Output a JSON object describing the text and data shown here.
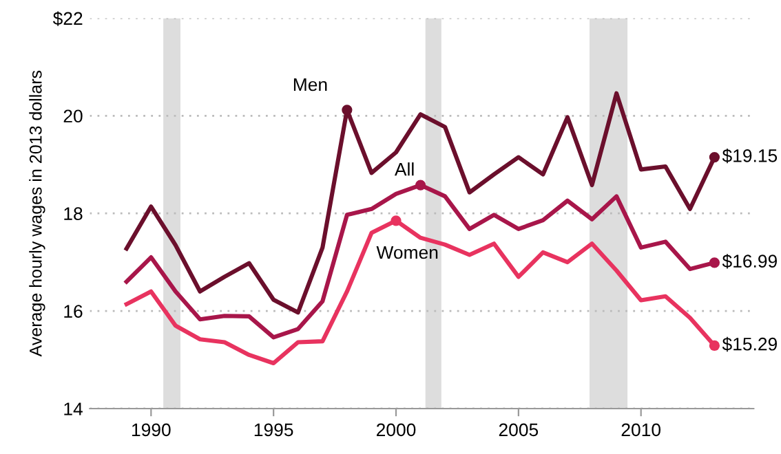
{
  "chart_data": {
    "type": "line",
    "ylabel": "Average hourly wages in 2013 dollars",
    "x": [
      1989,
      1990,
      1991,
      1992,
      1993,
      1994,
      1995,
      1996,
      1997,
      1998,
      1999,
      2000,
      2001,
      2002,
      2003,
      2004,
      2005,
      2006,
      2007,
      2008,
      2009,
      2010,
      2011,
      2012,
      2013
    ],
    "series": [
      {
        "name": "Men",
        "color": "#6b0f2c",
        "values": [
          17.28,
          18.14,
          17.35,
          16.4,
          16.7,
          16.98,
          16.23,
          15.97,
          17.3,
          20.12,
          18.83,
          19.25,
          20.03,
          19.77,
          18.43,
          18.8,
          19.15,
          18.8,
          19.97,
          18.58,
          20.46,
          18.9,
          18.96,
          18.09,
          19.15
        ],
        "value_labels": [
          null,
          null,
          null,
          null,
          null,
          null,
          null,
          null,
          null,
          null,
          null,
          null,
          null,
          null,
          null,
          null,
          null,
          null,
          null,
          null,
          null,
          null,
          null,
          null,
          "$19.15"
        ]
      },
      {
        "name": "All",
        "color": "#a8164a",
        "values": [
          16.6,
          17.1,
          16.4,
          15.83,
          15.9,
          15.89,
          15.46,
          15.63,
          16.2,
          17.97,
          18.09,
          18.4,
          18.58,
          18.35,
          17.68,
          17.97,
          17.68,
          17.86,
          18.26,
          17.88,
          18.35,
          17.3,
          17.42,
          16.86,
          16.99
        ],
        "value_labels": [
          null,
          null,
          null,
          null,
          null,
          null,
          null,
          null,
          null,
          null,
          null,
          null,
          null,
          null,
          null,
          null,
          null,
          null,
          null,
          null,
          null,
          null,
          null,
          null,
          "$16.99"
        ]
      },
      {
        "name": "Women",
        "color": "#e8335f",
        "values": [
          16.14,
          16.4,
          15.7,
          15.42,
          15.36,
          15.1,
          14.93,
          15.36,
          15.38,
          16.4,
          17.6,
          17.85,
          17.5,
          17.36,
          17.15,
          17.38,
          16.7,
          17.2,
          17.0,
          17.38,
          16.83,
          16.22,
          16.3,
          15.86,
          15.29
        ],
        "value_labels": [
          null,
          null,
          null,
          null,
          null,
          null,
          null,
          null,
          null,
          null,
          null,
          null,
          null,
          null,
          null,
          null,
          null,
          null,
          null,
          null,
          null,
          null,
          null,
          null,
          "$15.29"
        ]
      }
    ],
    "bands": [
      {
        "axis": "x",
        "from": 1990.5,
        "to": 1991.2,
        "color": "#dddddd"
      },
      {
        "axis": "x",
        "from": 2001.2,
        "to": 2001.85,
        "color": "#dddddd"
      },
      {
        "axis": "x",
        "from": 2007.9,
        "to": 2009.45,
        "color": "#dddddd"
      }
    ],
    "xlim": [
      1987.5,
      2014.6
    ],
    "xticks": [
      1990,
      1995,
      2000,
      2005,
      2010
    ],
    "ylim": [
      14,
      22
    ],
    "yticks": [
      14,
      16,
      18,
      20,
      {
        "value": 22,
        "label": "$22"
      }
    ],
    "grid": "y",
    "legend": false,
    "marker": "none",
    "line_style": "solid"
  }
}
